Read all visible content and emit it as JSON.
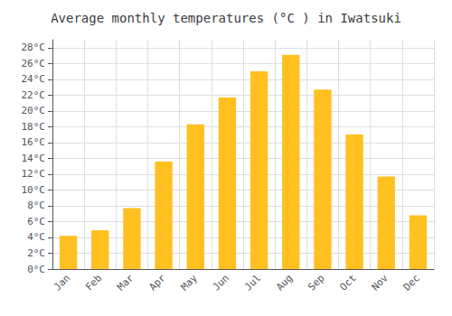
{
  "chart_data": {
    "type": "bar",
    "title": "Average monthly temperatures (°C ) in Iwatsuki",
    "categories": [
      "Jan",
      "Feb",
      "Mar",
      "Apr",
      "May",
      "Jun",
      "Jul",
      "Aug",
      "Sep",
      "Oct",
      "Nov",
      "Dec"
    ],
    "values": [
      4.2,
      4.9,
      7.7,
      13.6,
      18.3,
      21.7,
      25.0,
      27.1,
      22.7,
      17.0,
      11.7,
      6.8
    ],
    "color": "#FFC020",
    "ylim": [
      0,
      29
    ],
    "yticks": [
      {
        "value": 0,
        "label": "0°C"
      },
      {
        "value": 2,
        "label": "2°C"
      },
      {
        "value": 4,
        "label": "4°C"
      },
      {
        "value": 6,
        "label": "6°C"
      },
      {
        "value": 8,
        "label": "8°C"
      },
      {
        "value": 10,
        "label": "10°C"
      },
      {
        "value": 12,
        "label": "12°C"
      },
      {
        "value": 14,
        "label": "14°C"
      },
      {
        "value": 16,
        "label": "16°C"
      },
      {
        "value": 18,
        "label": "18°C"
      },
      {
        "value": 20,
        "label": "20°C"
      },
      {
        "value": 22,
        "label": "22°C"
      },
      {
        "value": 24,
        "label": "24°C"
      },
      {
        "value": 26,
        "label": "26°C"
      },
      {
        "value": 28,
        "label": "28°C"
      }
    ],
    "grid": true
  }
}
